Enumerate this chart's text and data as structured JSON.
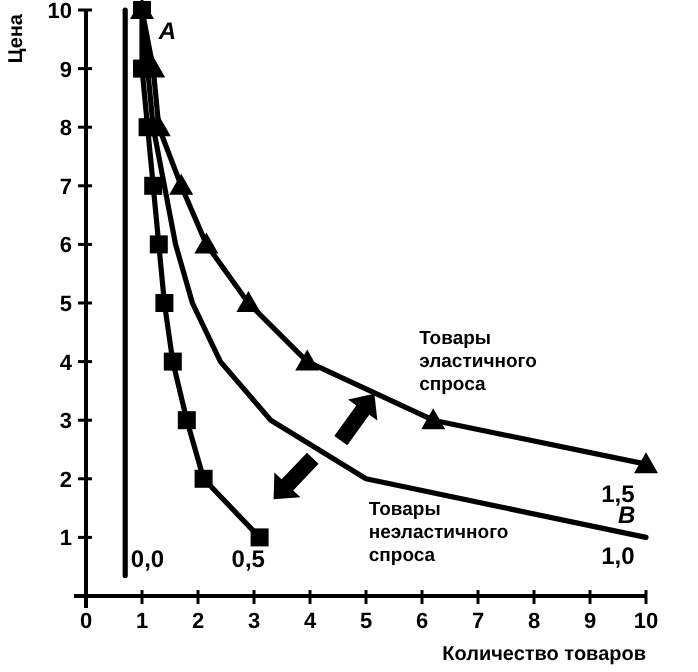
{
  "chart_data": {
    "type": "line",
    "xlabel": "Количество товаров",
    "ylabel": "Цена",
    "xlim": [
      0,
      10
    ],
    "ylim": [
      0,
      10
    ],
    "xticks": [
      0,
      1,
      2,
      3,
      4,
      5,
      6,
      7,
      8,
      9,
      10
    ],
    "yticks": [
      1,
      2,
      3,
      4,
      5,
      6,
      7,
      8,
      9,
      10
    ],
    "grid": false,
    "line_style": "solid",
    "series": [
      {
        "color": "#000000",
        "marker": "none",
        "x": [
          0.7,
          0.7
        ],
        "values": [
          0.35,
          10
        ]
      },
      {
        "color": "#000000",
        "marker": "square",
        "x": [
          1.0,
          1.0,
          1.1,
          1.2,
          1.3,
          1.4,
          1.55,
          1.8,
          2.1,
          3.1
        ],
        "values": [
          10,
          9,
          8,
          7,
          6,
          5,
          4,
          3,
          2,
          1
        ]
      },
      {
        "color": "#000000",
        "marker": "none",
        "x": [
          1.0,
          1.1,
          1.2,
          1.4,
          1.6,
          1.9,
          2.4,
          3.3,
          5.0,
          10
        ],
        "values": [
          10,
          9,
          8,
          7,
          6,
          5,
          4,
          3,
          2,
          1
        ]
      },
      {
        "color": "#000000",
        "marker": "triangle",
        "x": [
          1.0,
          1.2,
          1.3,
          1.7,
          2.15,
          2.9,
          3.95,
          6.2,
          10
        ],
        "values": [
          10,
          9,
          8,
          7,
          6,
          5,
          4,
          3,
          2.25
        ]
      }
    ],
    "annotations": [
      "А",
      "0,0",
      "0,5",
      "1,5",
      "В",
      "1,0",
      "Товары\nэластичного\nспроса",
      "Товары\nнеэластичного\nспроса"
    ]
  }
}
